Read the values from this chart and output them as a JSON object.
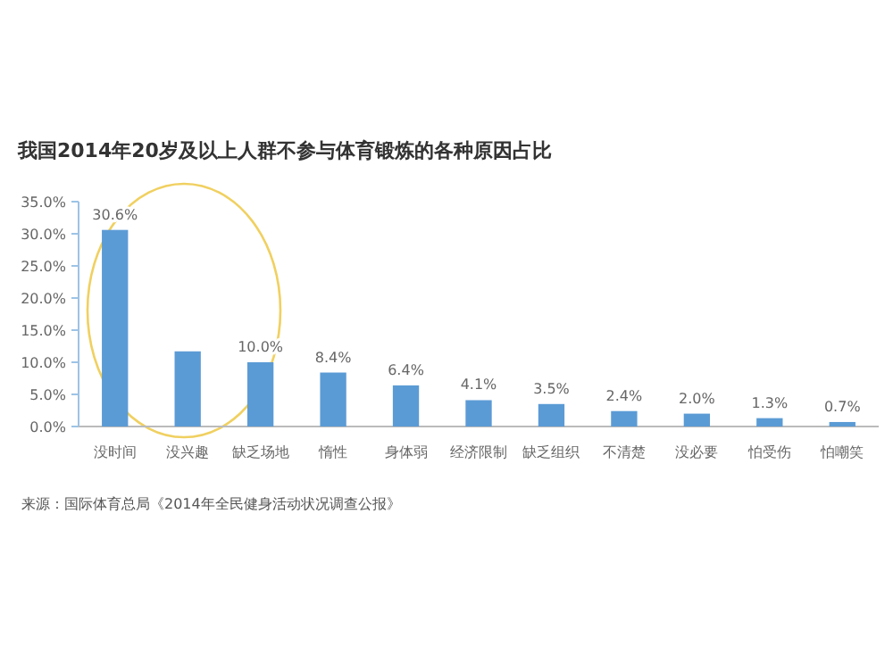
{
  "chart_data": {
    "type": "bar",
    "title": "我国2014年20岁及以上人群不参与体育锻炼的各种原因占比",
    "categories": [
      "没时间",
      "没兴趣",
      "缺乏场地",
      "惰性",
      "身体弱",
      "经济限制",
      "缺乏组织",
      "不清楚",
      "没必要",
      "怕受伤",
      "怕嘲笑"
    ],
    "values": [
      30.6,
      11.7,
      10.0,
      8.4,
      6.4,
      4.1,
      3.5,
      2.4,
      2.0,
      1.3,
      0.7
    ],
    "value_labels": [
      "30.6%",
      null,
      "10.0%",
      "8.4%",
      "6.4%",
      "4.1%",
      "3.5%",
      "2.4%",
      "2.0%",
      "1.3%",
      "0.7%"
    ],
    "color": "#5b9bd5",
    "ylim": [
      0,
      35
    ],
    "yticks": [
      {
        "value": 0,
        "label": "0.0%"
      },
      {
        "value": 5,
        "label": "5.0%"
      },
      {
        "value": 10,
        "label": "10.0%"
      },
      {
        "value": 15,
        "label": "15.0%"
      },
      {
        "value": 20,
        "label": "20.0%"
      },
      {
        "value": 25,
        "label": "25.0%"
      },
      {
        "value": 30,
        "label": "30.0%"
      },
      {
        "value": 35,
        "label": "35.0%"
      }
    ],
    "grid": false,
    "annotations": [
      "来源：国际体育总局《2014年全民健身活动状况调查公报》"
    ]
  }
}
